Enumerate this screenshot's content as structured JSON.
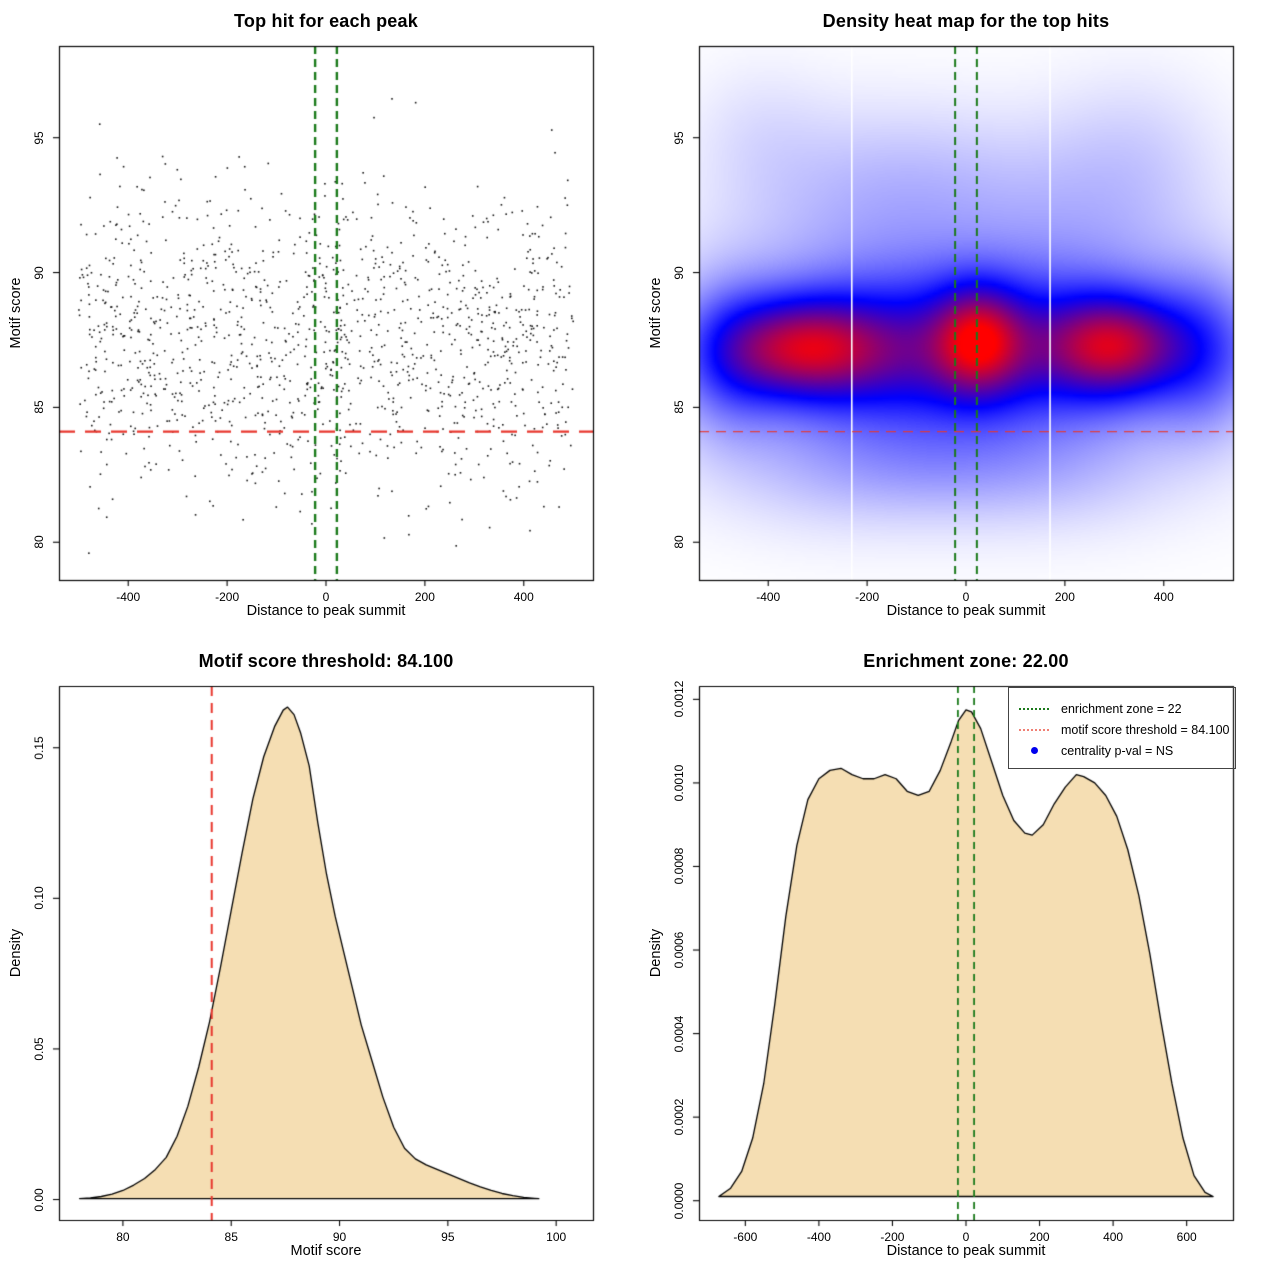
{
  "page": {
    "background": "#ffffff"
  },
  "chart_data": [
    {
      "id": "top-hit-scatter",
      "type": "scatter",
      "title": "Top hit for each peak",
      "xlabel": "Distance to peak summit",
      "ylabel": "Motif score",
      "xlim": [
        -540,
        540
      ],
      "ylim": [
        78.6,
        98.4
      ],
      "xticks": [
        -400,
        -200,
        0,
        200,
        400
      ],
      "xtick_labels": [
        "-400",
        "-200",
        "0",
        "200",
        "400"
      ],
      "yticks": [
        80,
        85,
        90,
        95
      ],
      "ytick_labels": [
        "80",
        "85",
        "90",
        "95"
      ],
      "n_points": 1350,
      "seed": 20,
      "x_dist": {
        "type": "uniform",
        "min": -500,
        "max": 500
      },
      "y_dist": {
        "type": "normal",
        "mean": 87.3,
        "sd": 2.85,
        "min": 79.4,
        "max": 97.6
      },
      "point_color": "#151515",
      "threshold_line": {
        "value": 84.1,
        "color": "#e8372e",
        "style": "dashed"
      },
      "zone_lines": {
        "values": [
          -22,
          22
        ],
        "color": "#1b7a1b",
        "style": "dashed"
      }
    },
    {
      "id": "top-hits-density-heatmap",
      "type": "heatmap",
      "title": "Density heat map for the top hits",
      "xlabel": "Distance to peak summit",
      "ylabel": "Motif score",
      "xlim": [
        -540,
        540
      ],
      "ylim": [
        78.6,
        98.4
      ],
      "xticks": [
        -400,
        -200,
        0,
        200,
        400
      ],
      "xtick_labels": [
        "-400",
        "-200",
        "0",
        "200",
        "400"
      ],
      "yticks": [
        80,
        85,
        90,
        95
      ],
      "ytick_labels": [
        "80",
        "85",
        "90",
        "95"
      ],
      "palette": [
        "#ffffff",
        "#0000ff",
        "#ff0000"
      ],
      "density_blobs": [
        [
          0,
          87.1,
          345,
          2.1,
          0.46
        ],
        [
          0,
          87.3,
          380,
          3.6,
          0.12
        ],
        [
          -330,
          87.2,
          110,
          1.25,
          0.55
        ],
        [
          25,
          87.5,
          62,
          1.35,
          0.47
        ],
        [
          300,
          87.3,
          92,
          1.25,
          0.52
        ],
        [
          -150,
          86.9,
          95,
          1.5,
          0.05
        ],
        [
          -480,
          86.8,
          70,
          2.0,
          0.16
        ],
        [
          480,
          87.0,
          70,
          2.0,
          0.18
        ],
        [
          -240,
          92.8,
          170,
          2.3,
          0.085
        ],
        [
          240,
          92.4,
          170,
          2.4,
          0.09
        ],
        [
          -60,
          93.2,
          140,
          2.1,
          0.055
        ],
        [
          -420,
          95.2,
          100,
          1.9,
          0.045
        ],
        [
          350,
          94.8,
          120,
          2.1,
          0.05
        ],
        [
          -260,
          82.7,
          180,
          1.6,
          0.085
        ],
        [
          170,
          82.5,
          190,
          1.5,
          0.075
        ],
        [
          -40,
          82.9,
          150,
          1.3,
          0.05
        ]
      ],
      "white_column_lines": [
        -231,
        170
      ],
      "threshold_line": {
        "value": 84.1,
        "color": "#e8372e",
        "style": "dashed"
      },
      "zone_lines": {
        "values": [
          -22,
          22
        ],
        "color": "#1b7a1b",
        "style": "dashed"
      }
    },
    {
      "id": "motif-score-density",
      "type": "area",
      "title": "Motif score threshold: 84.100",
      "xlabel": "Motif score",
      "ylabel": "Density",
      "xlim": [
        77.05,
        101.7
      ],
      "ylim": [
        -0.0068,
        0.1705
      ],
      "xticks": [
        80,
        85,
        90,
        95,
        100
      ],
      "xtick_labels": [
        "80",
        "85",
        "90",
        "95",
        "100"
      ],
      "yticks": [
        0,
        0.05,
        0.1,
        0.15
      ],
      "ytick_labels": [
        "0.00",
        "0.05",
        "0.10",
        "0.15"
      ],
      "fill_color": "#f5deb3",
      "line_color": "#000000",
      "threshold_line": {
        "value": 84.1,
        "color": "#e8372e",
        "style": "dashed"
      },
      "points": [
        [
          78,
          0.0003
        ],
        [
          78.5,
          0.0005
        ],
        [
          79,
          0.001
        ],
        [
          79.5,
          0.0018
        ],
        [
          80,
          0.003
        ],
        [
          80.5,
          0.0048
        ],
        [
          81,
          0.007
        ],
        [
          81.5,
          0.01
        ],
        [
          82,
          0.014
        ],
        [
          82.5,
          0.021
        ],
        [
          83,
          0.031
        ],
        [
          83.5,
          0.044
        ],
        [
          84,
          0.059
        ],
        [
          84.5,
          0.077
        ],
        [
          85,
          0.096
        ],
        [
          85.5,
          0.115
        ],
        [
          86,
          0.133
        ],
        [
          86.5,
          0.147
        ],
        [
          87,
          0.157
        ],
        [
          87.4,
          0.1625
        ],
        [
          87.6,
          0.1635
        ],
        [
          87.9,
          0.161
        ],
        [
          88.2,
          0.155
        ],
        [
          88.6,
          0.144
        ],
        [
          89,
          0.125
        ],
        [
          89.4,
          0.108
        ],
        [
          89.8,
          0.094
        ],
        [
          90.2,
          0.082
        ],
        [
          90.6,
          0.07
        ],
        [
          91,
          0.058
        ],
        [
          91.5,
          0.046
        ],
        [
          92,
          0.034
        ],
        [
          92.5,
          0.024
        ],
        [
          93,
          0.017
        ],
        [
          93.5,
          0.0135
        ],
        [
          94,
          0.0115
        ],
        [
          94.5,
          0.01
        ],
        [
          95,
          0.0085
        ],
        [
          95.5,
          0.007
        ],
        [
          96,
          0.0055
        ],
        [
          96.5,
          0.0042
        ],
        [
          97,
          0.003
        ],
        [
          97.5,
          0.002
        ],
        [
          98,
          0.0013
        ],
        [
          98.5,
          0.0007
        ],
        [
          99,
          0.0004
        ],
        [
          99.2,
          0.0003
        ]
      ]
    },
    {
      "id": "distance-density",
      "type": "area",
      "title": "Enrichment zone: 22.00",
      "xlabel": "Distance to peak summit",
      "ylabel": "Density",
      "xlim": [
        -726,
        726
      ],
      "ylim": [
        -4.62e-05,
        0.001232
      ],
      "xticks": [
        -600,
        -400,
        -200,
        0,
        200,
        400,
        600
      ],
      "xtick_labels": [
        "-600",
        "-400",
        "-200",
        "0",
        "200",
        "400",
        "600"
      ],
      "yticks": [
        0,
        0.0002,
        0.0004,
        0.0006,
        0.0008,
        0.001,
        0.0012
      ],
      "ytick_labels": [
        "0.0000",
        "0.0002",
        "0.0004",
        "0.0006",
        "0.0008",
        "0.0010",
        "0.0012"
      ],
      "fill_color": "#f5deb3",
      "line_color": "#000000",
      "zone_lines": {
        "values": [
          -22,
          22
        ],
        "color": "#1b7a1b",
        "style": "dashed"
      },
      "points": [
        [
          -672,
          1e-05
        ],
        [
          -640,
          3e-05
        ],
        [
          -610,
          7e-05
        ],
        [
          -580,
          0.00015
        ],
        [
          -550,
          0.00028
        ],
        [
          -520,
          0.00047
        ],
        [
          -490,
          0.00068
        ],
        [
          -460,
          0.00085
        ],
        [
          -430,
          0.00096
        ],
        [
          -400,
          0.00101
        ],
        [
          -370,
          0.00103
        ],
        [
          -340,
          0.001035
        ],
        [
          -310,
          0.00102
        ],
        [
          -280,
          0.00101
        ],
        [
          -250,
          0.00101
        ],
        [
          -220,
          0.00102
        ],
        [
          -190,
          0.00101
        ],
        [
          -160,
          0.00098
        ],
        [
          -130,
          0.00097
        ],
        [
          -100,
          0.00098
        ],
        [
          -70,
          0.00103
        ],
        [
          -40,
          0.0011
        ],
        [
          -20,
          0.00115
        ],
        [
          0,
          0.001175
        ],
        [
          15,
          0.00117
        ],
        [
          40,
          0.00113
        ],
        [
          70,
          0.00105
        ],
        [
          100,
          0.00097
        ],
        [
          130,
          0.00091
        ],
        [
          160,
          0.00088
        ],
        [
          180,
          0.000875
        ],
        [
          210,
          0.0009
        ],
        [
          240,
          0.00095
        ],
        [
          270,
          0.00099
        ],
        [
          300,
          0.00102
        ],
        [
          320,
          0.001015
        ],
        [
          350,
          0.001
        ],
        [
          380,
          0.00097
        ],
        [
          410,
          0.00092
        ],
        [
          440,
          0.00084
        ],
        [
          470,
          0.00073
        ],
        [
          500,
          0.00059
        ],
        [
          530,
          0.00043
        ],
        [
          560,
          0.00028
        ],
        [
          590,
          0.00015
        ],
        [
          620,
          6e-05
        ],
        [
          650,
          2e-05
        ],
        [
          672,
          1e-05
        ]
      ],
      "legend": {
        "border_color": "#444444",
        "items": [
          {
            "swatch": "dotted-line",
            "color": "#1b7a1b",
            "label": "enrichment zone = 22"
          },
          {
            "swatch": "dotted-line",
            "color": "#f08075",
            "label": "motif score threshold = 84.100"
          },
          {
            "swatch": "dot",
            "color": "#0000ee",
            "label": "centrality p-val = NS"
          }
        ]
      }
    }
  ]
}
